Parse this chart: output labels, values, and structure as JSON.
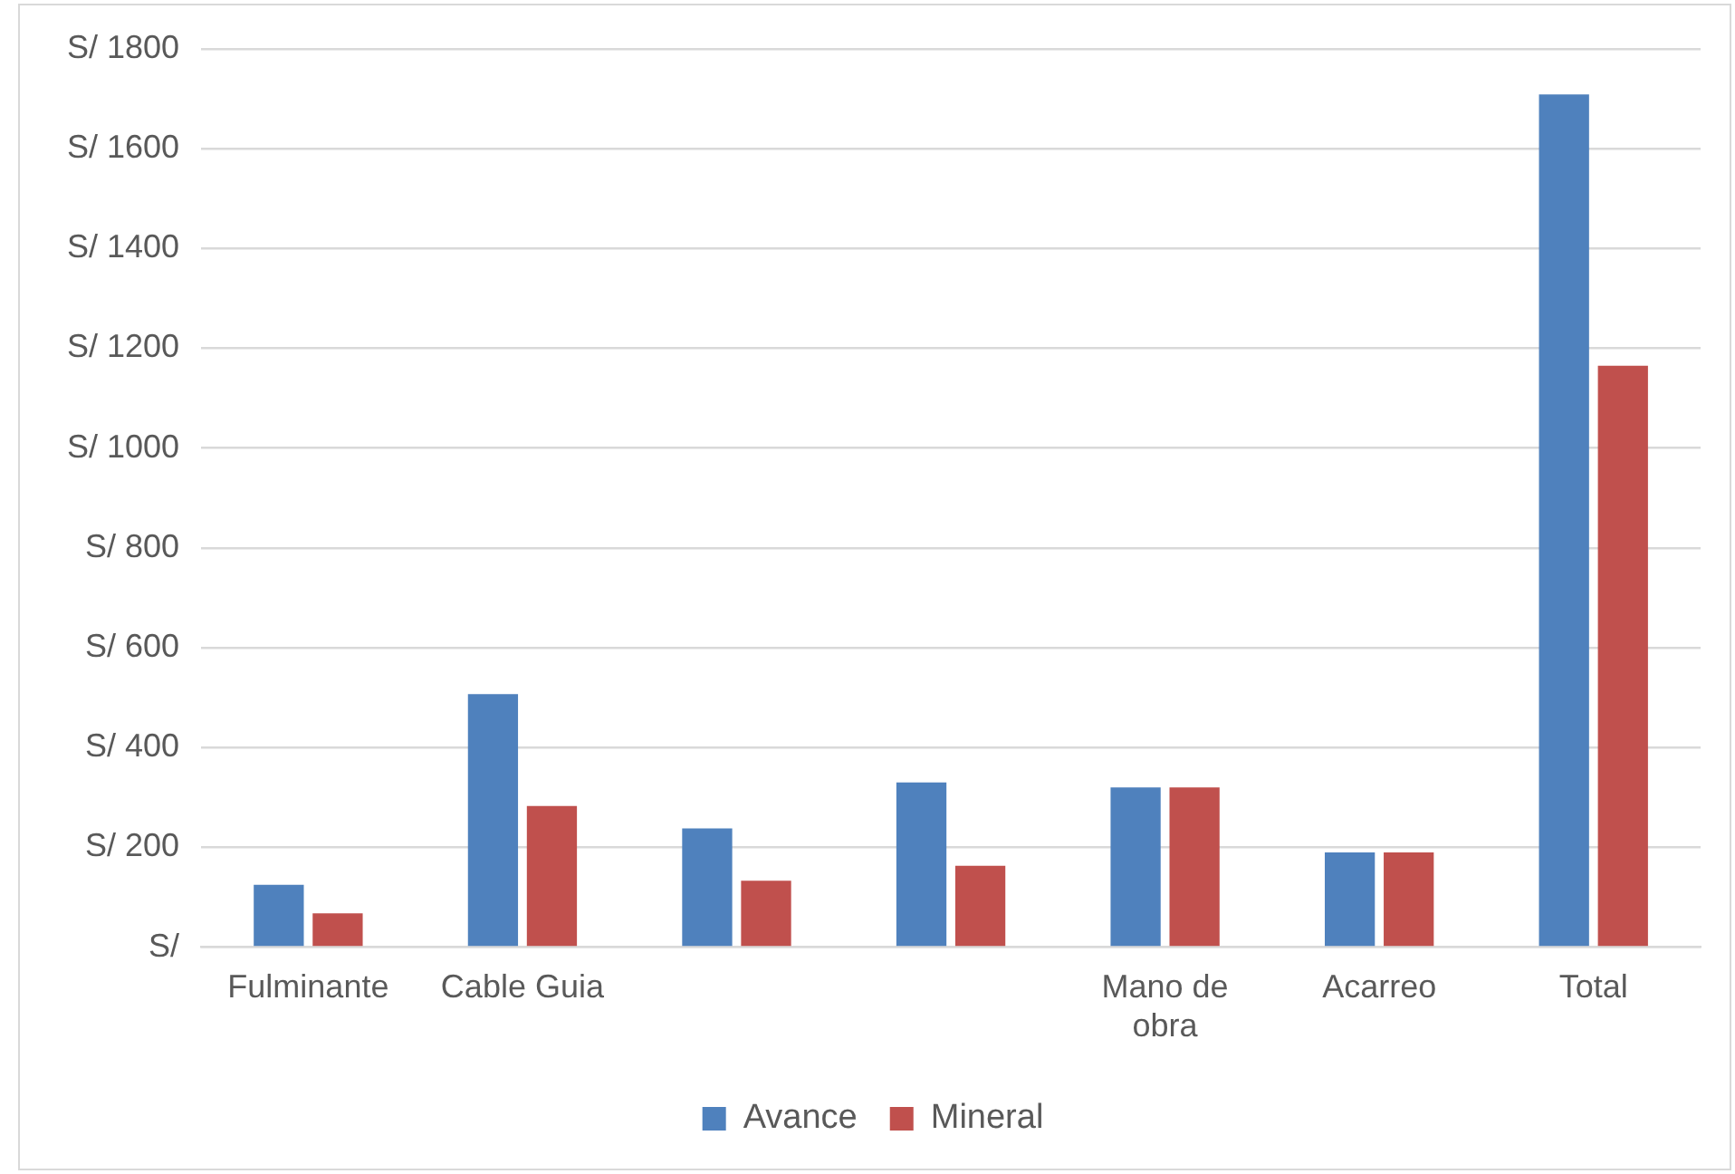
{
  "chart_data": {
    "type": "bar",
    "categories": [
      "Fulminante",
      "Cable Guia",
      null,
      null,
      "Mano de obra",
      "Acarreo",
      "Total"
    ],
    "series": [
      {
        "name": "Avance",
        "color": "#4f81bd",
        "values": [
          125,
          507,
          238,
          330,
          320,
          190,
          1709
        ]
      },
      {
        "name": "Mineral",
        "color": "#c0504d",
        "values": [
          68,
          283,
          133,
          163,
          320,
          190,
          1165
        ]
      }
    ],
    "ylim": [
      0,
      1800
    ],
    "yticks": [
      {
        "value": 0,
        "label": "S/"
      },
      {
        "value": 200,
        "label": "S/ 200"
      },
      {
        "value": 400,
        "label": "S/ 400"
      },
      {
        "value": 600,
        "label": "S/ 600"
      },
      {
        "value": 800,
        "label": "S/ 800"
      },
      {
        "value": 1000,
        "label": "S/ 1000"
      },
      {
        "value": 1200,
        "label": "S/ 1200"
      },
      {
        "value": 1400,
        "label": "S/ 1400"
      },
      {
        "value": 1600,
        "label": "S/ 1600"
      },
      {
        "value": 1800,
        "label": "S/ 1800"
      }
    ],
    "grid": "y",
    "legend": "bottom"
  }
}
